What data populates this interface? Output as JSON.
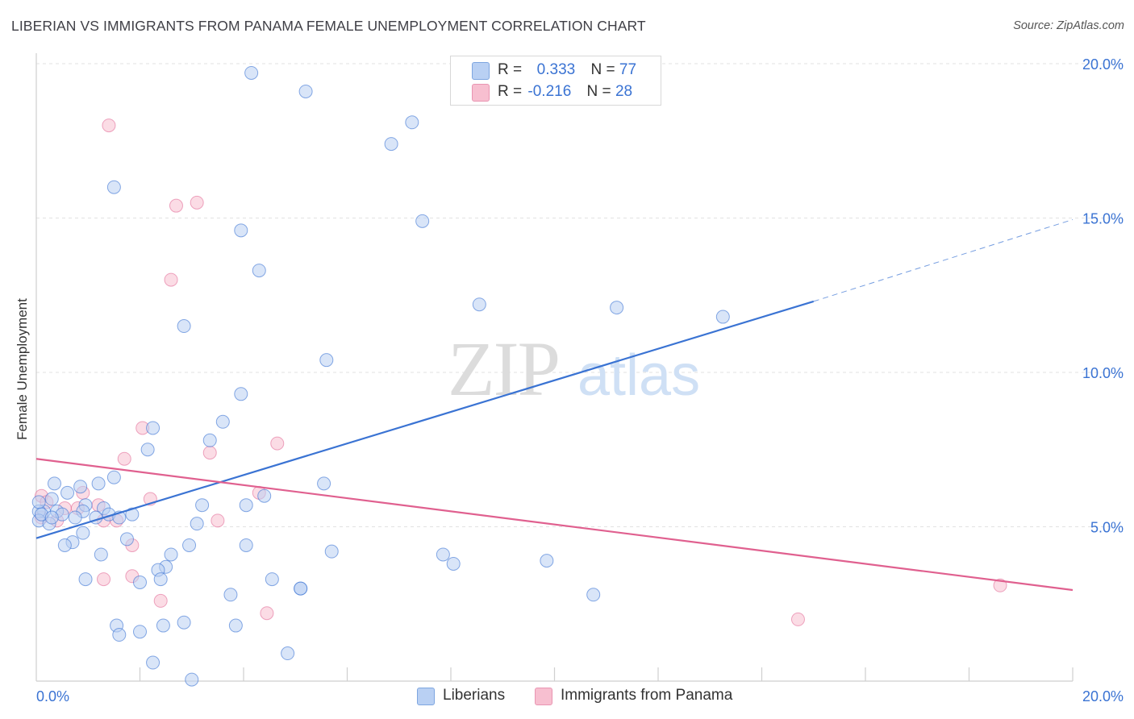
{
  "title": "LIBERIAN VS IMMIGRANTS FROM PANAMA FEMALE UNEMPLOYMENT CORRELATION CHART",
  "source": "Source: ZipAtlas.com",
  "watermark": {
    "zip": "ZIP",
    "atlas": "atlas"
  },
  "legend": {
    "r_label": "R =",
    "n_label": "N =",
    "series": [
      {
        "r": "0.333",
        "n": "77"
      },
      {
        "r": "-0.216",
        "n": "28"
      }
    ]
  },
  "bottom_legend": [
    "Liberians",
    "Immigrants from Panama"
  ],
  "chart_data": {
    "type": "scatter",
    "title": "LIBERIAN VS IMMIGRANTS FROM PANAMA FEMALE UNEMPLOYMENT CORRELATION CHART",
    "xlabel": "",
    "ylabel": "Female Unemployment",
    "xlim": [
      0,
      20
    ],
    "ylim": [
      0,
      20
    ],
    "x_tick_labels": [
      "0.0%",
      "20.0%"
    ],
    "y_tick_labels": [
      "5.0%",
      "10.0%",
      "15.0%",
      "20.0%"
    ],
    "y_ticks": [
      5,
      10,
      15,
      20
    ],
    "colors": {
      "liberians": "#3a73d3",
      "liberians_fill": "#b9d0f3",
      "panama": "#e0608f",
      "panama_fill": "#f7bfd0"
    },
    "series": [
      {
        "name": "Liberians",
        "points": [
          [
            4.15,
            19.7
          ],
          [
            5.2,
            19.1
          ],
          [
            7.25,
            18.1
          ],
          [
            6.85,
            17.4
          ],
          [
            1.5,
            16.0
          ],
          [
            7.45,
            14.9
          ],
          [
            3.95,
            14.6
          ],
          [
            4.3,
            13.3
          ],
          [
            8.55,
            12.2
          ],
          [
            11.2,
            12.1
          ],
          [
            13.25,
            11.8
          ],
          [
            2.85,
            11.5
          ],
          [
            5.6,
            10.4
          ],
          [
            3.95,
            9.3
          ],
          [
            3.6,
            8.4
          ],
          [
            2.25,
            8.2
          ],
          [
            2.15,
            7.5
          ],
          [
            3.35,
            7.8
          ],
          [
            1.5,
            6.6
          ],
          [
            5.55,
            6.4
          ],
          [
            0.35,
            6.4
          ],
          [
            0.85,
            6.3
          ],
          [
            0.6,
            6.1
          ],
          [
            1.2,
            6.4
          ],
          [
            0.3,
            5.9
          ],
          [
            4.4,
            6.0
          ],
          [
            4.05,
            5.7
          ],
          [
            3.2,
            5.7
          ],
          [
            1.3,
            5.6
          ],
          [
            0.95,
            5.7
          ],
          [
            0.15,
            5.5
          ],
          [
            0.4,
            5.5
          ],
          [
            0.05,
            5.5
          ],
          [
            0.5,
            5.4
          ],
          [
            1.15,
            5.3
          ],
          [
            1.4,
            5.4
          ],
          [
            1.85,
            5.4
          ],
          [
            0.9,
            5.5
          ],
          [
            0.05,
            5.8
          ],
          [
            0.05,
            5.2
          ],
          [
            0.25,
            5.1
          ],
          [
            3.1,
            5.1
          ],
          [
            0.9,
            4.8
          ],
          [
            1.75,
            4.6
          ],
          [
            0.7,
            4.5
          ],
          [
            0.55,
            4.4
          ],
          [
            2.95,
            4.4
          ],
          [
            4.05,
            4.4
          ],
          [
            5.7,
            4.2
          ],
          [
            2.6,
            4.1
          ],
          [
            1.25,
            4.1
          ],
          [
            7.85,
            4.1
          ],
          [
            8.05,
            3.8
          ],
          [
            9.85,
            3.9
          ],
          [
            2.5,
            3.7
          ],
          [
            2.35,
            3.6
          ],
          [
            0.95,
            3.3
          ],
          [
            2.0,
            3.2
          ],
          [
            2.4,
            3.3
          ],
          [
            4.55,
            3.3
          ],
          [
            5.1,
            3.0
          ],
          [
            5.1,
            3.0
          ],
          [
            3.75,
            2.8
          ],
          [
            10.75,
            2.8
          ],
          [
            1.55,
            1.8
          ],
          [
            2.45,
            1.8
          ],
          [
            2.85,
            1.9
          ],
          [
            3.85,
            1.8
          ],
          [
            1.6,
            1.5
          ],
          [
            2.0,
            1.6
          ],
          [
            4.85,
            0.9
          ],
          [
            2.25,
            0.6
          ],
          [
            3.0,
            0.05
          ],
          [
            0.1,
            5.4
          ],
          [
            0.75,
            5.3
          ],
          [
            1.6,
            5.3
          ],
          [
            0.3,
            5.3
          ]
        ]
      },
      {
        "name": "Immigrants from Panama",
        "points": [
          [
            1.4,
            18.0
          ],
          [
            3.1,
            15.5
          ],
          [
            2.7,
            15.4
          ],
          [
            2.6,
            13.0
          ],
          [
            2.05,
            8.2
          ],
          [
            4.65,
            7.7
          ],
          [
            3.35,
            7.4
          ],
          [
            1.7,
            7.2
          ],
          [
            0.1,
            6.0
          ],
          [
            0.9,
            6.1
          ],
          [
            4.3,
            6.1
          ],
          [
            2.2,
            5.9
          ],
          [
            0.2,
            5.8
          ],
          [
            0.55,
            5.6
          ],
          [
            1.2,
            5.7
          ],
          [
            0.8,
            5.6
          ],
          [
            0.1,
            5.3
          ],
          [
            0.4,
            5.2
          ],
          [
            1.3,
            5.2
          ],
          [
            1.55,
            5.2
          ],
          [
            3.5,
            5.2
          ],
          [
            1.85,
            4.4
          ],
          [
            1.3,
            3.3
          ],
          [
            1.85,
            3.4
          ],
          [
            2.4,
            2.6
          ],
          [
            4.45,
            2.2
          ],
          [
            14.7,
            2.0
          ],
          [
            18.6,
            3.1
          ]
        ]
      }
    ],
    "trend_lines": [
      {
        "name": "Liberians",
        "x0": 0,
        "y0": 4.63,
        "x1": 15.0,
        "y1": 12.3,
        "dashed_to_x": 20.0,
        "dashed_to_y": 14.95
      },
      {
        "name": "Immigrants from Panama",
        "x0": 0,
        "y0": 7.2,
        "x1": 20.0,
        "y1": 2.95
      }
    ]
  }
}
